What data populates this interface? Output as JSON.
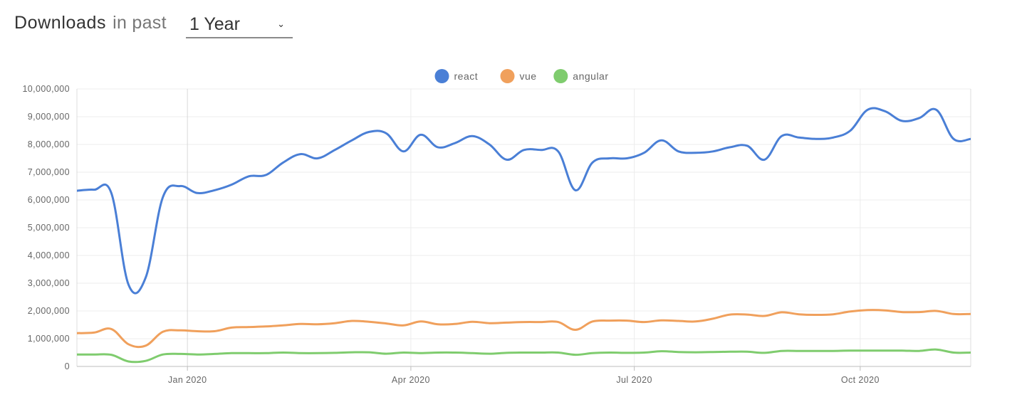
{
  "header": {
    "title_strong": "Downloads",
    "title_light": "in past",
    "range_value": "1 Year",
    "range_icon": "chevron-down-icon"
  },
  "chart_data": {
    "type": "line",
    "ylim": [
      0,
      10000000
    ],
    "y_ticks": [
      0,
      1000000,
      2000000,
      3000000,
      4000000,
      5000000,
      6000000,
      7000000,
      8000000,
      9000000,
      10000000
    ],
    "y_tick_labels": [
      "0",
      "1,000,000",
      "2,000,000",
      "3,000,000",
      "4,000,000",
      "5,000,000",
      "6,000,000",
      "7,000,000",
      "8,000,000",
      "9,000,000",
      "10,000,000"
    ],
    "x_range": [
      "2019-11-17",
      "2020-11-15"
    ],
    "x_ticks": [
      "2020-01-01",
      "2020-04-01",
      "2020-07-01",
      "2020-10-01"
    ],
    "x_tick_labels": [
      "Jan 2020",
      "Apr 2020",
      "Jul 2020",
      "Oct 2020"
    ],
    "grid": true,
    "legend_position": "top-center",
    "x": [
      "2019-11-17",
      "2019-11-24",
      "2019-12-01",
      "2019-12-08",
      "2019-12-15",
      "2019-12-22",
      "2019-12-29",
      "2020-01-05",
      "2020-01-12",
      "2020-01-19",
      "2020-01-26",
      "2020-02-02",
      "2020-02-09",
      "2020-02-16",
      "2020-02-23",
      "2020-03-01",
      "2020-03-08",
      "2020-03-15",
      "2020-03-22",
      "2020-03-29",
      "2020-04-05",
      "2020-04-12",
      "2020-04-19",
      "2020-04-26",
      "2020-05-03",
      "2020-05-10",
      "2020-05-17",
      "2020-05-24",
      "2020-05-31",
      "2020-06-07",
      "2020-06-14",
      "2020-06-21",
      "2020-06-28",
      "2020-07-05",
      "2020-07-12",
      "2020-07-19",
      "2020-07-26",
      "2020-08-02",
      "2020-08-09",
      "2020-08-16",
      "2020-08-23",
      "2020-08-30",
      "2020-09-06",
      "2020-09-13",
      "2020-09-20",
      "2020-09-27",
      "2020-10-04",
      "2020-10-11",
      "2020-10-18",
      "2020-10-25",
      "2020-11-01",
      "2020-11-08",
      "2020-11-15"
    ],
    "series": [
      {
        "name": "react",
        "color": "#4a7fd6",
        "values": [
          6330000,
          6370000,
          6250000,
          2950000,
          3200000,
          6100000,
          6500000,
          6250000,
          6350000,
          6550000,
          6850000,
          6900000,
          7350000,
          7650000,
          7500000,
          7800000,
          8150000,
          8450000,
          8400000,
          7750000,
          8350000,
          7900000,
          8050000,
          8300000,
          8000000,
          7450000,
          7800000,
          7800000,
          7750000,
          6350000,
          7350000,
          7500000,
          7500000,
          7700000,
          8150000,
          7750000,
          7700000,
          7750000,
          7900000,
          7950000,
          7450000,
          8300000,
          8250000,
          8200000,
          8250000,
          8500000,
          9250000,
          9200000,
          8850000,
          8950000,
          9250000,
          8200000,
          8200000
        ]
      },
      {
        "name": "vue",
        "color": "#f0a05c",
        "values": [
          1200000,
          1220000,
          1350000,
          800000,
          750000,
          1250000,
          1300000,
          1270000,
          1270000,
          1400000,
          1420000,
          1440000,
          1480000,
          1530000,
          1520000,
          1560000,
          1640000,
          1610000,
          1550000,
          1480000,
          1620000,
          1520000,
          1530000,
          1610000,
          1560000,
          1580000,
          1600000,
          1600000,
          1600000,
          1320000,
          1620000,
          1650000,
          1650000,
          1600000,
          1660000,
          1640000,
          1620000,
          1720000,
          1870000,
          1870000,
          1820000,
          1950000,
          1880000,
          1860000,
          1880000,
          1980000,
          2030000,
          2020000,
          1960000,
          1960000,
          2000000,
          1890000,
          1890000
        ]
      },
      {
        "name": "angular",
        "color": "#7fcc6e",
        "values": [
          430000,
          430000,
          420000,
          180000,
          200000,
          430000,
          450000,
          430000,
          450000,
          480000,
          480000,
          480000,
          500000,
          480000,
          480000,
          490000,
          510000,
          510000,
          460000,
          500000,
          480000,
          500000,
          500000,
          480000,
          460000,
          490000,
          500000,
          500000,
          500000,
          420000,
          480000,
          500000,
          490000,
          500000,
          550000,
          520000,
          510000,
          520000,
          530000,
          530000,
          490000,
          560000,
          560000,
          560000,
          560000,
          570000,
          570000,
          570000,
          570000,
          560000,
          610000,
          500000,
          500000
        ]
      }
    ]
  }
}
